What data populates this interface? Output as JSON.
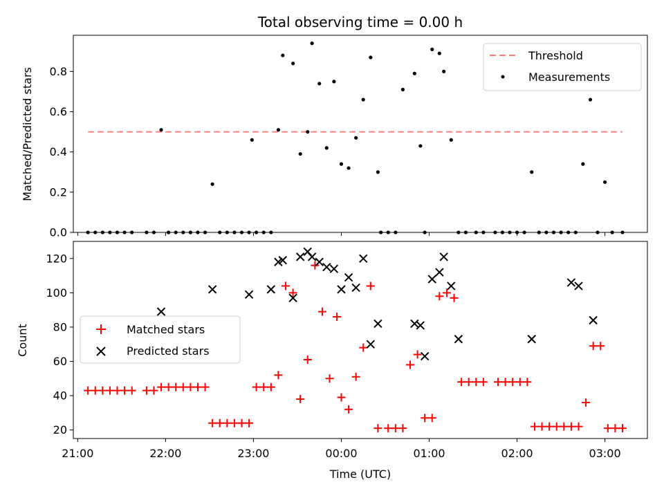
{
  "figure": {
    "title": "Total observing time = 0.00 h",
    "xlabel": "Time (UTC)"
  },
  "chart_data": [
    {
      "type": "scatter",
      "ylabel": "Matched/Predicted stars",
      "xlim": [
        "20:57",
        "03:29"
      ],
      "ylim": [
        0,
        0.98
      ],
      "yticks": [
        0.0,
        0.2,
        0.4,
        0.6,
        0.8
      ],
      "ytick_labels": [
        "0.0",
        "0.2",
        "0.4",
        "0.6",
        "0.8"
      ],
      "legend": {
        "position": "top-right",
        "entries": [
          {
            "key": "threshold",
            "label": "Threshold"
          },
          {
            "key": "measurements",
            "label": "Measurements"
          }
        ]
      },
      "threshold": {
        "name": "Threshold",
        "value": 0.5,
        "x_start": "21:07",
        "x_end": "03:12",
        "color": "#ff7f7f",
        "style": "dashed"
      },
      "series": [
        {
          "name": "Measurements",
          "color": "#000000",
          "marker": "dot",
          "x": [
            "21:07",
            "21:12",
            "21:17",
            "21:22",
            "21:27",
            "21:32",
            "21:37",
            "21:47",
            "21:52",
            "21:57",
            "22:02",
            "22:07",
            "22:12",
            "22:17",
            "22:22",
            "22:27",
            "22:32",
            "22:37",
            "22:42",
            "22:47",
            "22:52",
            "22:57",
            "22:59",
            "23:02",
            "23:07",
            "23:12",
            "23:17",
            "23:20",
            "23:27",
            "23:32",
            "23:37",
            "23:40",
            "23:45",
            "23:50",
            "23:55",
            "00:00",
            "00:05",
            "00:10",
            "00:15",
            "00:20",
            "00:25",
            "00:27",
            "00:32",
            "00:37",
            "00:42",
            "00:50",
            "00:54",
            "00:57",
            "01:02",
            "01:07",
            "01:10",
            "01:15",
            "01:20",
            "01:25",
            "01:32",
            "01:37",
            "01:45",
            "01:50",
            "01:55",
            "02:00",
            "02:05",
            "02:10",
            "02:15",
            "02:20",
            "02:25",
            "02:30",
            "02:35",
            "02:40",
            "02:45",
            "02:50",
            "02:55",
            "03:00",
            "03:05",
            "03:12"
          ],
          "y": [
            0,
            0,
            0,
            0,
            0,
            0,
            0,
            0,
            0,
            0.51,
            0,
            0,
            0,
            0,
            0,
            0,
            0.24,
            0,
            0,
            0,
            0,
            0,
            0.46,
            0,
            0,
            0,
            0.51,
            0.88,
            0.84,
            0.39,
            0.5,
            0.94,
            0.74,
            0.42,
            0.75,
            0.34,
            0.32,
            0.47,
            0.66,
            0.87,
            0.3,
            0,
            0,
            0,
            0.71,
            0.79,
            0.43,
            0,
            0.91,
            0.89,
            0.8,
            0.46,
            0,
            0,
            0,
            0,
            0,
            0,
            0,
            0,
            0,
            0.3,
            0,
            0,
            0,
            0,
            0,
            0,
            0.34,
            0.66,
            0,
            0.25,
            0,
            0
          ]
        }
      ]
    },
    {
      "type": "scatter",
      "ylabel": "Count",
      "xlim": [
        "20:57",
        "03:29"
      ],
      "ylim": [
        15,
        130
      ],
      "yticks": [
        20,
        40,
        60,
        80,
        100,
        120
      ],
      "ytick_labels": [
        "20",
        "40",
        "60",
        "80",
        "100",
        "120"
      ],
      "xticks": [
        "21:00",
        "22:00",
        "23:00",
        "00:00",
        "01:00",
        "02:00",
        "03:00"
      ],
      "xtick_labels": [
        "21:00",
        "22:00",
        "23:00",
        "00:00",
        "01:00",
        "02:00",
        "03:00"
      ],
      "legend": {
        "position": "center-left",
        "entries": [
          {
            "key": "matched",
            "label": "Matched stars"
          },
          {
            "key": "predicted",
            "label": "Predicted stars"
          }
        ]
      },
      "series": [
        {
          "name": "Matched stars",
          "color": "#ff0000",
          "marker": "plus",
          "x": [
            "21:07",
            "21:12",
            "21:17",
            "21:22",
            "21:27",
            "21:32",
            "21:37",
            "21:47",
            "21:52",
            "21:57",
            "22:02",
            "22:07",
            "22:12",
            "22:17",
            "22:22",
            "22:27",
            "22:32",
            "22:37",
            "22:42",
            "22:47",
            "22:52",
            "22:57",
            "23:02",
            "23:07",
            "23:12",
            "23:17",
            "23:22",
            "23:27",
            "23:32",
            "23:37",
            "23:42",
            "23:47",
            "23:52",
            "23:57",
            "00:00",
            "00:05",
            "00:10",
            "00:15",
            "00:20",
            "00:25",
            "00:32",
            "00:37",
            "00:42",
            "00:47",
            "00:52",
            "00:57",
            "01:02",
            "01:07",
            "01:12",
            "01:17",
            "01:22",
            "01:27",
            "01:32",
            "01:37",
            "01:47",
            "01:52",
            "01:57",
            "02:02",
            "02:07",
            "02:12",
            "02:17",
            "02:22",
            "02:27",
            "02:32",
            "02:37",
            "02:42",
            "02:47",
            "02:52",
            "02:57",
            "03:02",
            "03:07",
            "03:12"
          ],
          "y": [
            43,
            43,
            43,
            43,
            43,
            43,
            43,
            43,
            43,
            45,
            45,
            45,
            45,
            45,
            45,
            45,
            24,
            24,
            24,
            24,
            24,
            24,
            45,
            45,
            45,
            52,
            104,
            100,
            38,
            61,
            116,
            89,
            50,
            86,
            39,
            32,
            51,
            68,
            104,
            21,
            21,
            21,
            21,
            58,
            64,
            27,
            27,
            98,
            100,
            97,
            48,
            48,
            48,
            48,
            48,
            48,
            48,
            48,
            48,
            22,
            22,
            22,
            22,
            22,
            22,
            22,
            36,
            69,
            69,
            21,
            21,
            21
          ]
        },
        {
          "name": "Predicted stars",
          "color": "#000000",
          "marker": "x",
          "x": [
            "21:57",
            "22:32",
            "22:57",
            "23:12",
            "23:17",
            "23:20",
            "23:27",
            "23:32",
            "23:37",
            "23:40",
            "23:45",
            "23:50",
            "23:55",
            "00:00",
            "00:05",
            "00:10",
            "00:15",
            "00:20",
            "00:25",
            "00:50",
            "00:54",
            "00:57",
            "01:02",
            "01:07",
            "01:10",
            "01:15",
            "01:20",
            "02:10",
            "02:37",
            "02:42",
            "02:52"
          ],
          "y": [
            89,
            102,
            99,
            102,
            118,
            119,
            97,
            121,
            124,
            121,
            118,
            115,
            114,
            102,
            109,
            103,
            120,
            70,
            82,
            82,
            81,
            63,
            108,
            112,
            121,
            104,
            73,
            73,
            106,
            104,
            84
          ]
        }
      ]
    }
  ]
}
